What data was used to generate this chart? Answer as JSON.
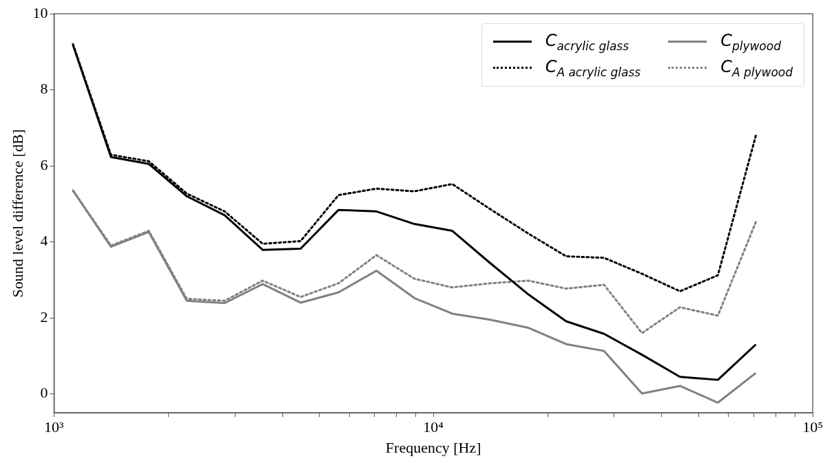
{
  "chart_data": {
    "type": "line",
    "xlabel": "Frequency [Hz]",
    "ylabel": "Sound level difference [dB]",
    "x": [
      1122,
      1413,
      1778,
      2239,
      2818,
      3548,
      4467,
      5623,
      7079,
      8913,
      11220,
      14125,
      17783,
      22387,
      28184,
      35481,
      44668,
      56234,
      70795
    ],
    "log": "x",
    "grid": false,
    "legend": "top right",
    "marker": "none",
    "xlim": [
      1000,
      100000
    ],
    "xticks": [
      {
        "value": 1000,
        "label": "10³"
      },
      {
        "value": 2000,
        "label": null
      },
      {
        "value": 3000,
        "label": null
      },
      {
        "value": 4000,
        "label": null
      },
      {
        "value": 5000,
        "label": null
      },
      {
        "value": 6000,
        "label": null
      },
      {
        "value": 7000,
        "label": null
      },
      {
        "value": 8000,
        "label": null
      },
      {
        "value": 9000,
        "label": null
      },
      {
        "value": 10000,
        "label": "10⁴"
      },
      {
        "value": 20000,
        "label": null
      },
      {
        "value": 30000,
        "label": null
      },
      {
        "value": 40000,
        "label": null
      },
      {
        "value": 50000,
        "label": null
      },
      {
        "value": 60000,
        "label": null
      },
      {
        "value": 70000,
        "label": null
      },
      {
        "value": 80000,
        "label": null
      },
      {
        "value": 90000,
        "label": null
      },
      {
        "value": 100000,
        "label": "10⁵"
      }
    ],
    "ylim": [
      -0.5,
      10
    ],
    "yticks": [
      0,
      2,
      4,
      6,
      8,
      10
    ],
    "series": [
      {
        "name": "C$_{acrylic glass}$",
        "color": "#000000",
        "line_style": "solid",
        "values": [
          9.18,
          6.23,
          6.05,
          5.2,
          4.7,
          3.79,
          3.82,
          4.84,
          4.8,
          4.47,
          4.29,
          3.44,
          2.62,
          1.91,
          1.58,
          1.03,
          0.45,
          0.37,
          1.3
        ]
      },
      {
        "name": "C$_{A acrylic glass}$",
        "color": "#000000",
        "line_style": "dotted",
        "values": [
          9.2,
          6.29,
          6.12,
          5.27,
          4.8,
          3.95,
          4.02,
          5.23,
          5.4,
          5.33,
          5.52,
          4.86,
          4.22,
          3.62,
          3.58,
          3.16,
          2.7,
          3.12,
          6.79
        ]
      },
      {
        "name": "C$_{plywood}$",
        "color": "#808080",
        "line_style": "solid",
        "values": [
          5.35,
          3.87,
          4.26,
          2.45,
          2.39,
          2.89,
          2.4,
          2.67,
          3.24,
          2.52,
          2.11,
          1.95,
          1.74,
          1.31,
          1.13,
          0.01,
          0.21,
          -0.23,
          0.55
        ]
      },
      {
        "name": "C$_{A plywood}$",
        "color": "#808080",
        "line_style": "dotted",
        "values": [
          5.35,
          3.9,
          4.29,
          2.5,
          2.45,
          2.98,
          2.55,
          2.91,
          3.65,
          3.03,
          2.8,
          2.91,
          2.98,
          2.77,
          2.87,
          1.6,
          2.28,
          2.06,
          4.52
        ]
      }
    ]
  }
}
